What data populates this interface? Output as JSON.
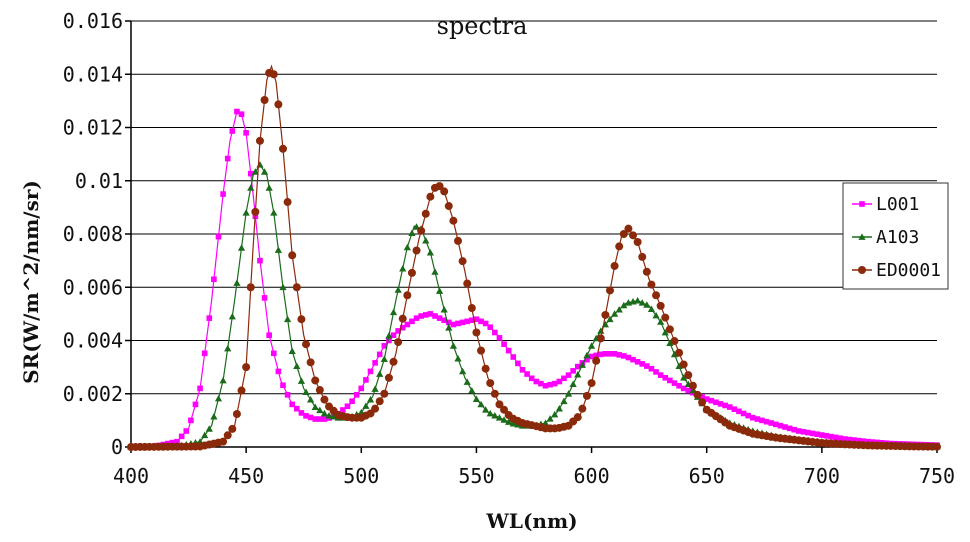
{
  "chart_data": {
    "type": "line",
    "title": "spectra",
    "xlabel": "WL(nm)",
    "ylabel": "SR(W/m^2/nm/sr)",
    "xlim": [
      400,
      750
    ],
    "ylim": [
      0,
      0.016
    ],
    "xticks": [
      400,
      450,
      500,
      550,
      600,
      650,
      700,
      750
    ],
    "yticks": [
      "0",
      "0.002",
      "0.004",
      "0.006",
      "0.008",
      "0.01",
      "0.012",
      "0.014",
      "0.016"
    ],
    "grid": "horizontal",
    "legend_position": "right",
    "series": [
      {
        "name": "L001",
        "color": "#ff00ff",
        "marker": "square",
        "x": [
          400,
          410,
          420,
          425,
          430,
          435,
          440,
          443,
          446,
          448,
          450,
          453,
          456,
          460,
          465,
          470,
          475,
          480,
          485,
          490,
          495,
          500,
          505,
          510,
          515,
          520,
          525,
          530,
          535,
          540,
          545,
          550,
          555,
          560,
          565,
          570,
          575,
          580,
          585,
          590,
          595,
          600,
          605,
          610,
          615,
          620,
          625,
          630,
          640,
          650,
          660,
          670,
          680,
          690,
          700,
          710,
          720,
          730,
          740,
          750
        ],
        "y": [
          0,
          2e-05,
          0.0002,
          0.0007,
          0.0022,
          0.0055,
          0.0095,
          0.0115,
          0.0126,
          0.0125,
          0.0118,
          0.0095,
          0.007,
          0.0042,
          0.0025,
          0.0016,
          0.0012,
          0.00105,
          0.00105,
          0.00125,
          0.0016,
          0.0022,
          0.003,
          0.0038,
          0.0043,
          0.0046,
          0.0049,
          0.005,
          0.0048,
          0.0046,
          0.0047,
          0.0048,
          0.0046,
          0.0041,
          0.0035,
          0.0029,
          0.0025,
          0.0023,
          0.0024,
          0.0027,
          0.0031,
          0.0034,
          0.0035,
          0.0035,
          0.0034,
          0.0032,
          0.003,
          0.0027,
          0.0022,
          0.0018,
          0.0015,
          0.0011,
          0.00085,
          0.0006,
          0.00045,
          0.0003,
          0.0002,
          0.00013,
          0.0001,
          7e-05
        ]
      },
      {
        "name": "A103",
        "color": "#1a6b1a",
        "marker": "triangle",
        "x": [
          400,
          420,
          430,
          435,
          440,
          445,
          450,
          453,
          456,
          459,
          462,
          466,
          470,
          475,
          480,
          485,
          490,
          495,
          500,
          505,
          510,
          515,
          520,
          523,
          526,
          530,
          535,
          540,
          545,
          550,
          555,
          560,
          565,
          570,
          575,
          580,
          585,
          590,
          595,
          600,
          605,
          610,
          615,
          620,
          625,
          630,
          635,
          640,
          650,
          660,
          670,
          680,
          690,
          700,
          710,
          720,
          730,
          740,
          750
        ],
        "y": [
          0,
          2e-05,
          0.0002,
          0.0008,
          0.0025,
          0.0055,
          0.0088,
          0.0102,
          0.0106,
          0.0102,
          0.0088,
          0.006,
          0.0036,
          0.0022,
          0.0015,
          0.0012,
          0.0011,
          0.0011,
          0.0013,
          0.0019,
          0.0033,
          0.0055,
          0.0075,
          0.0083,
          0.0082,
          0.0073,
          0.0055,
          0.0038,
          0.0026,
          0.0018,
          0.0013,
          0.0011,
          0.0009,
          0.0008,
          0.0008,
          0.0009,
          0.0013,
          0.002,
          0.0029,
          0.0038,
          0.0045,
          0.005,
          0.0054,
          0.0055,
          0.0053,
          0.0047,
          0.0037,
          0.0026,
          0.0014,
          0.0009,
          0.0006,
          0.0004,
          0.00028,
          0.0002,
          0.00013,
          9e-05,
          6e-05,
          4e-05,
          2e-05
        ]
      },
      {
        "name": "ED0001",
        "color": "#8b2a0a",
        "marker": "circle",
        "x": [
          400,
          430,
          440,
          445,
          450,
          453,
          456,
          459,
          461,
          463,
          466,
          470,
          475,
          480,
          485,
          490,
          495,
          500,
          505,
          510,
          515,
          520,
          525,
          530,
          533,
          536,
          540,
          545,
          550,
          555,
          560,
          565,
          570,
          575,
          580,
          585,
          590,
          595,
          600,
          605,
          610,
          613,
          616,
          620,
          625,
          630,
          635,
          640,
          645,
          650,
          660,
          670,
          680,
          690,
          700,
          710,
          720,
          730,
          740,
          750
        ],
        "y": [
          0,
          2e-05,
          0.0002,
          0.0008,
          0.003,
          0.0075,
          0.0115,
          0.0138,
          0.0143,
          0.0137,
          0.0112,
          0.0072,
          0.0042,
          0.0025,
          0.0016,
          0.0012,
          0.0011,
          0.0011,
          0.0013,
          0.002,
          0.0035,
          0.0057,
          0.0078,
          0.0094,
          0.0099,
          0.0096,
          0.0085,
          0.0066,
          0.0043,
          0.0026,
          0.0016,
          0.0011,
          0.0009,
          0.0008,
          0.0007,
          0.0007,
          0.0008,
          0.0012,
          0.0024,
          0.0045,
          0.0068,
          0.0079,
          0.0082,
          0.0077,
          0.0063,
          0.0053,
          0.0042,
          0.0031,
          0.0021,
          0.0014,
          0.0008,
          0.0005,
          0.00035,
          0.00025,
          0.00015,
          0.0001,
          6e-05,
          4e-05,
          2e-05,
          1e-05
        ]
      }
    ]
  }
}
